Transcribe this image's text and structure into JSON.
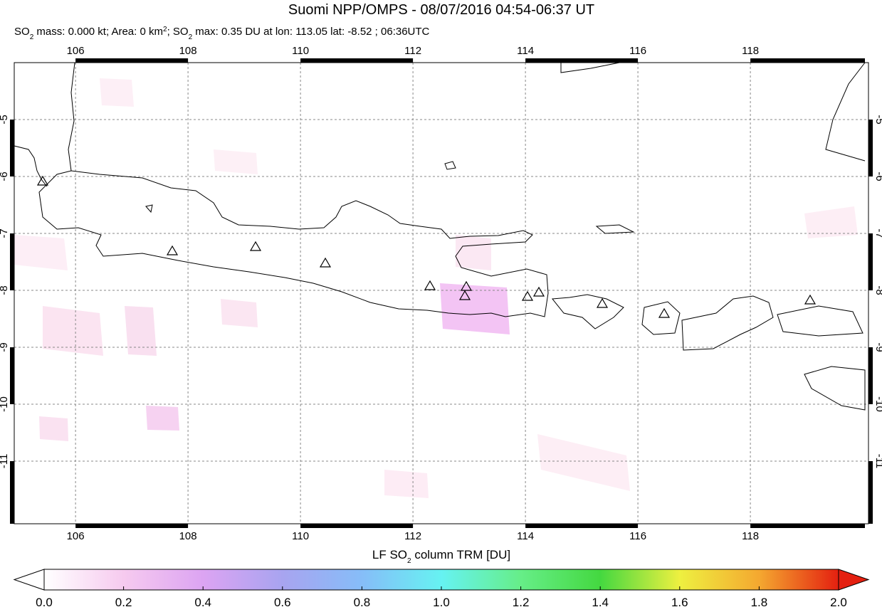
{
  "title": "Suomi NPP/OMPS - 08/07/2016 04:54-06:37 UT",
  "subtitle": [
    {
      "text": "SO"
    },
    {
      "text": "2",
      "style": "sub"
    },
    {
      "text": " mass: 0.000 kt; Area: 0 km"
    },
    {
      "text": "2",
      "style": "sup"
    },
    {
      "text": "; SO"
    },
    {
      "text": "2",
      "style": "sub"
    },
    {
      "text": " max: 0.35 DU at lon: 113.05 lat: -8.52 ; 06:36UTC"
    }
  ],
  "map": {
    "xlim": [
      104.91,
      120.1
    ],
    "ylim": [
      -12.1,
      -4
    ],
    "xticks": [
      106,
      108,
      110,
      112,
      114,
      116,
      118
    ],
    "yticks": [
      -5,
      -6,
      -7,
      -8,
      -9,
      -10,
      -11
    ],
    "grid": true
  },
  "colorbar": {
    "label": [
      {
        "text": "LF SO"
      },
      {
        "text": "2",
        "style": "sub"
      },
      {
        "text": " column TRM [DU]"
      }
    ],
    "lim": [
      0,
      2
    ],
    "ticks": [
      {
        "value": 0,
        "label": "0.0"
      },
      {
        "value": 0.2,
        "label": "0.2"
      },
      {
        "value": 0.4,
        "label": "0.4"
      },
      {
        "value": 0.6,
        "label": "0.6"
      },
      {
        "value": 0.8,
        "label": "0.8"
      },
      {
        "value": 1,
        "label": "1.0"
      },
      {
        "value": 1.2,
        "label": "1.2"
      },
      {
        "value": 1.4,
        "label": "1.4"
      },
      {
        "value": 1.6,
        "label": "1.6"
      },
      {
        "value": 1.8,
        "label": "1.8"
      },
      {
        "value": 2,
        "label": "2.0"
      }
    ],
    "colors": [
      "#ffffff",
      "#f6caef",
      "#dca4f2",
      "#a8a4f0",
      "#86bdf8",
      "#66f2f2",
      "#66ee88",
      "#44d840",
      "#eef040",
      "#f4a830",
      "#e42010"
    ]
  }
}
